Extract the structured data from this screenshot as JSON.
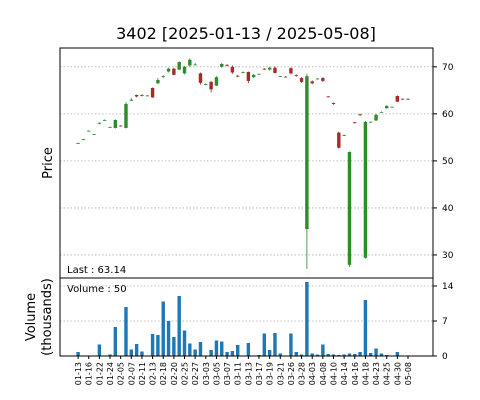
{
  "chart_data": {
    "type": "candlestick",
    "title": "3402   [2025-01-13 / 2025-05-08]",
    "categories": [
      "01-13",
      null,
      "01-16",
      null,
      "01-22",
      null,
      "01-24",
      null,
      "02-05",
      null,
      "02-07",
      null,
      "02-11",
      null,
      "02-13",
      null,
      "02-18",
      null,
      "02-20",
      null,
      "02-25",
      null,
      "02-27",
      null,
      "03-03",
      null,
      "03-05",
      null,
      "03-07",
      null,
      "03-11",
      null,
      "03-13",
      null,
      "03-17",
      null,
      "03-19",
      null,
      "03-21",
      null,
      "03-26",
      null,
      "03-28",
      null,
      "04-03",
      null,
      "04-08",
      null,
      "04-10",
      null,
      "04-14",
      null,
      "04-16",
      null,
      "04-18",
      null,
      "04-23",
      null,
      "04-25",
      null,
      "04-30",
      null,
      "05-08"
    ],
    "open": [
      53.8,
      54.6,
      56.4,
      55.6,
      57.9,
      58.6,
      57.2,
      57.0,
      57.5,
      57.0,
      62.8,
      64.0,
      63.8,
      63.8,
      65.5,
      66.5,
      67.9,
      69.0,
      69.6,
      69.4,
      68.6,
      70.3,
      70.5,
      68.6,
      66.3,
      66.8,
      66.0,
      70.0,
      70.4,
      70.0,
      68.1,
      68.8,
      68.9,
      67.8,
      68.5,
      69.6,
      69.4,
      69.8,
      68.0,
      67.9,
      69.7,
      68.2,
      67.6,
      35.5,
      66.9,
      67.4,
      67.6,
      63.7,
      62.3,
      56.0,
      55.4,
      27.9,
      58.2,
      59.9,
      29.4,
      58.3,
      58.6,
      60.4,
      61.2,
      61.5,
      63.8,
      63.2,
      63.2
    ],
    "high": [
      53.9,
      54.7,
      56.5,
      55.7,
      58.2,
      58.8,
      57.3,
      58.8,
      57.6,
      62.5,
      63.4,
      64.1,
      64.2,
      64.0,
      65.6,
      67.6,
      68.2,
      69.8,
      69.8,
      71.2,
      70.2,
      71.8,
      70.8,
      68.8,
      66.5,
      67.0,
      68.0,
      70.8,
      70.6,
      70.3,
      68.3,
      69.0,
      69.0,
      68.5,
      68.6,
      69.7,
      70.0,
      70.1,
      68.1,
      68.0,
      69.9,
      68.4,
      67.8,
      68.5,
      67.1,
      67.6,
      67.8,
      63.8,
      62.4,
      56.2,
      55.6,
      52.0,
      58.3,
      60.0,
      58.5,
      58.4,
      60.0,
      60.5,
      61.8,
      61.6,
      63.9,
      63.3,
      63.3
    ],
    "low": [
      53.7,
      54.5,
      56.3,
      55.5,
      57.8,
      58.5,
      57.1,
      56.9,
      57.3,
      56.9,
      62.7,
      63.5,
      63.7,
      63.7,
      63.4,
      66.3,
      67.6,
      68.8,
      68.2,
      69.3,
      68.4,
      70.0,
      70.3,
      66.2,
      66.1,
      64.5,
      65.9,
      69.8,
      70.1,
      68.5,
      67.8,
      68.6,
      66.5,
      67.6,
      68.4,
      69.3,
      69.2,
      68.6,
      67.9,
      67.7,
      68.4,
      67.9,
      66.6,
      27.0,
      66.3,
      67.3,
      66.8,
      63.5,
      61.9,
      52.6,
      55.3,
      27.4,
      57.9,
      59.6,
      29.2,
      58.2,
      58.5,
      60.3,
      61.1,
      61.4,
      62.5,
      63.0,
      63.0
    ],
    "close": [
      53.8,
      54.6,
      56.4,
      55.7,
      58.1,
      58.7,
      57.2,
      58.7,
      57.4,
      62.1,
      63.0,
      63.7,
      64.0,
      63.9,
      63.5,
      67.2,
      68.0,
      69.6,
      68.3,
      71.0,
      70.0,
      71.5,
      70.5,
      66.6,
      66.3,
      65.2,
      67.8,
      70.6,
      70.3,
      68.8,
      68.0,
      68.9,
      67.0,
      68.3,
      68.5,
      69.5,
      69.8,
      68.7,
      68.0,
      67.8,
      68.6,
      68.1,
      66.8,
      68.0,
      66.5,
      67.5,
      67.0,
      63.6,
      62.1,
      52.8,
      55.5,
      51.9,
      58.1,
      59.7,
      58.3,
      58.3,
      59.8,
      60.4,
      61.7,
      61.5,
      62.6,
      63.1,
      63.14
    ],
    "up_color": "#2e8b2e",
    "down_color": "#a52a2a",
    "xlim": [
      -3.4,
      66.7
    ],
    "ylim": [
      25.1,
      74.0
    ],
    "yticks": [
      30,
      40,
      50,
      60,
      70
    ],
    "ylabel": "Price",
    "annotation": "Last : 63.14",
    "grid": true,
    "volume": {
      "values": [
        0.8,
        0,
        0,
        0,
        2.3,
        0,
        0.3,
        5.8,
        0,
        9.8,
        1.3,
        2.4,
        0.9,
        0,
        4.4,
        4.2,
        10.9,
        7.0,
        3.8,
        12.0,
        5.1,
        2.5,
        1.3,
        2.8,
        0,
        1.2,
        3.1,
        2.9,
        0.8,
        1.0,
        2.2,
        0,
        2.6,
        0,
        0.2,
        4.5,
        1.2,
        4.6,
        0.5,
        0,
        4.5,
        0.8,
        0.3,
        14.8,
        0.5,
        0.3,
        2.3,
        0.4,
        0.3,
        0.2,
        0.3,
        0.5,
        0.4,
        0.8,
        11.2,
        0.6,
        1.5,
        0.5,
        0.2,
        0,
        0.8,
        0.1,
        0.05
      ],
      "color": "#1f77b4",
      "ylim": [
        0,
        15.6
      ],
      "yticks": [
        0,
        7,
        14
      ],
      "ylabel": [
        "Volume",
        "(thousands)"
      ],
      "annotation": "Volume : 50"
    }
  }
}
